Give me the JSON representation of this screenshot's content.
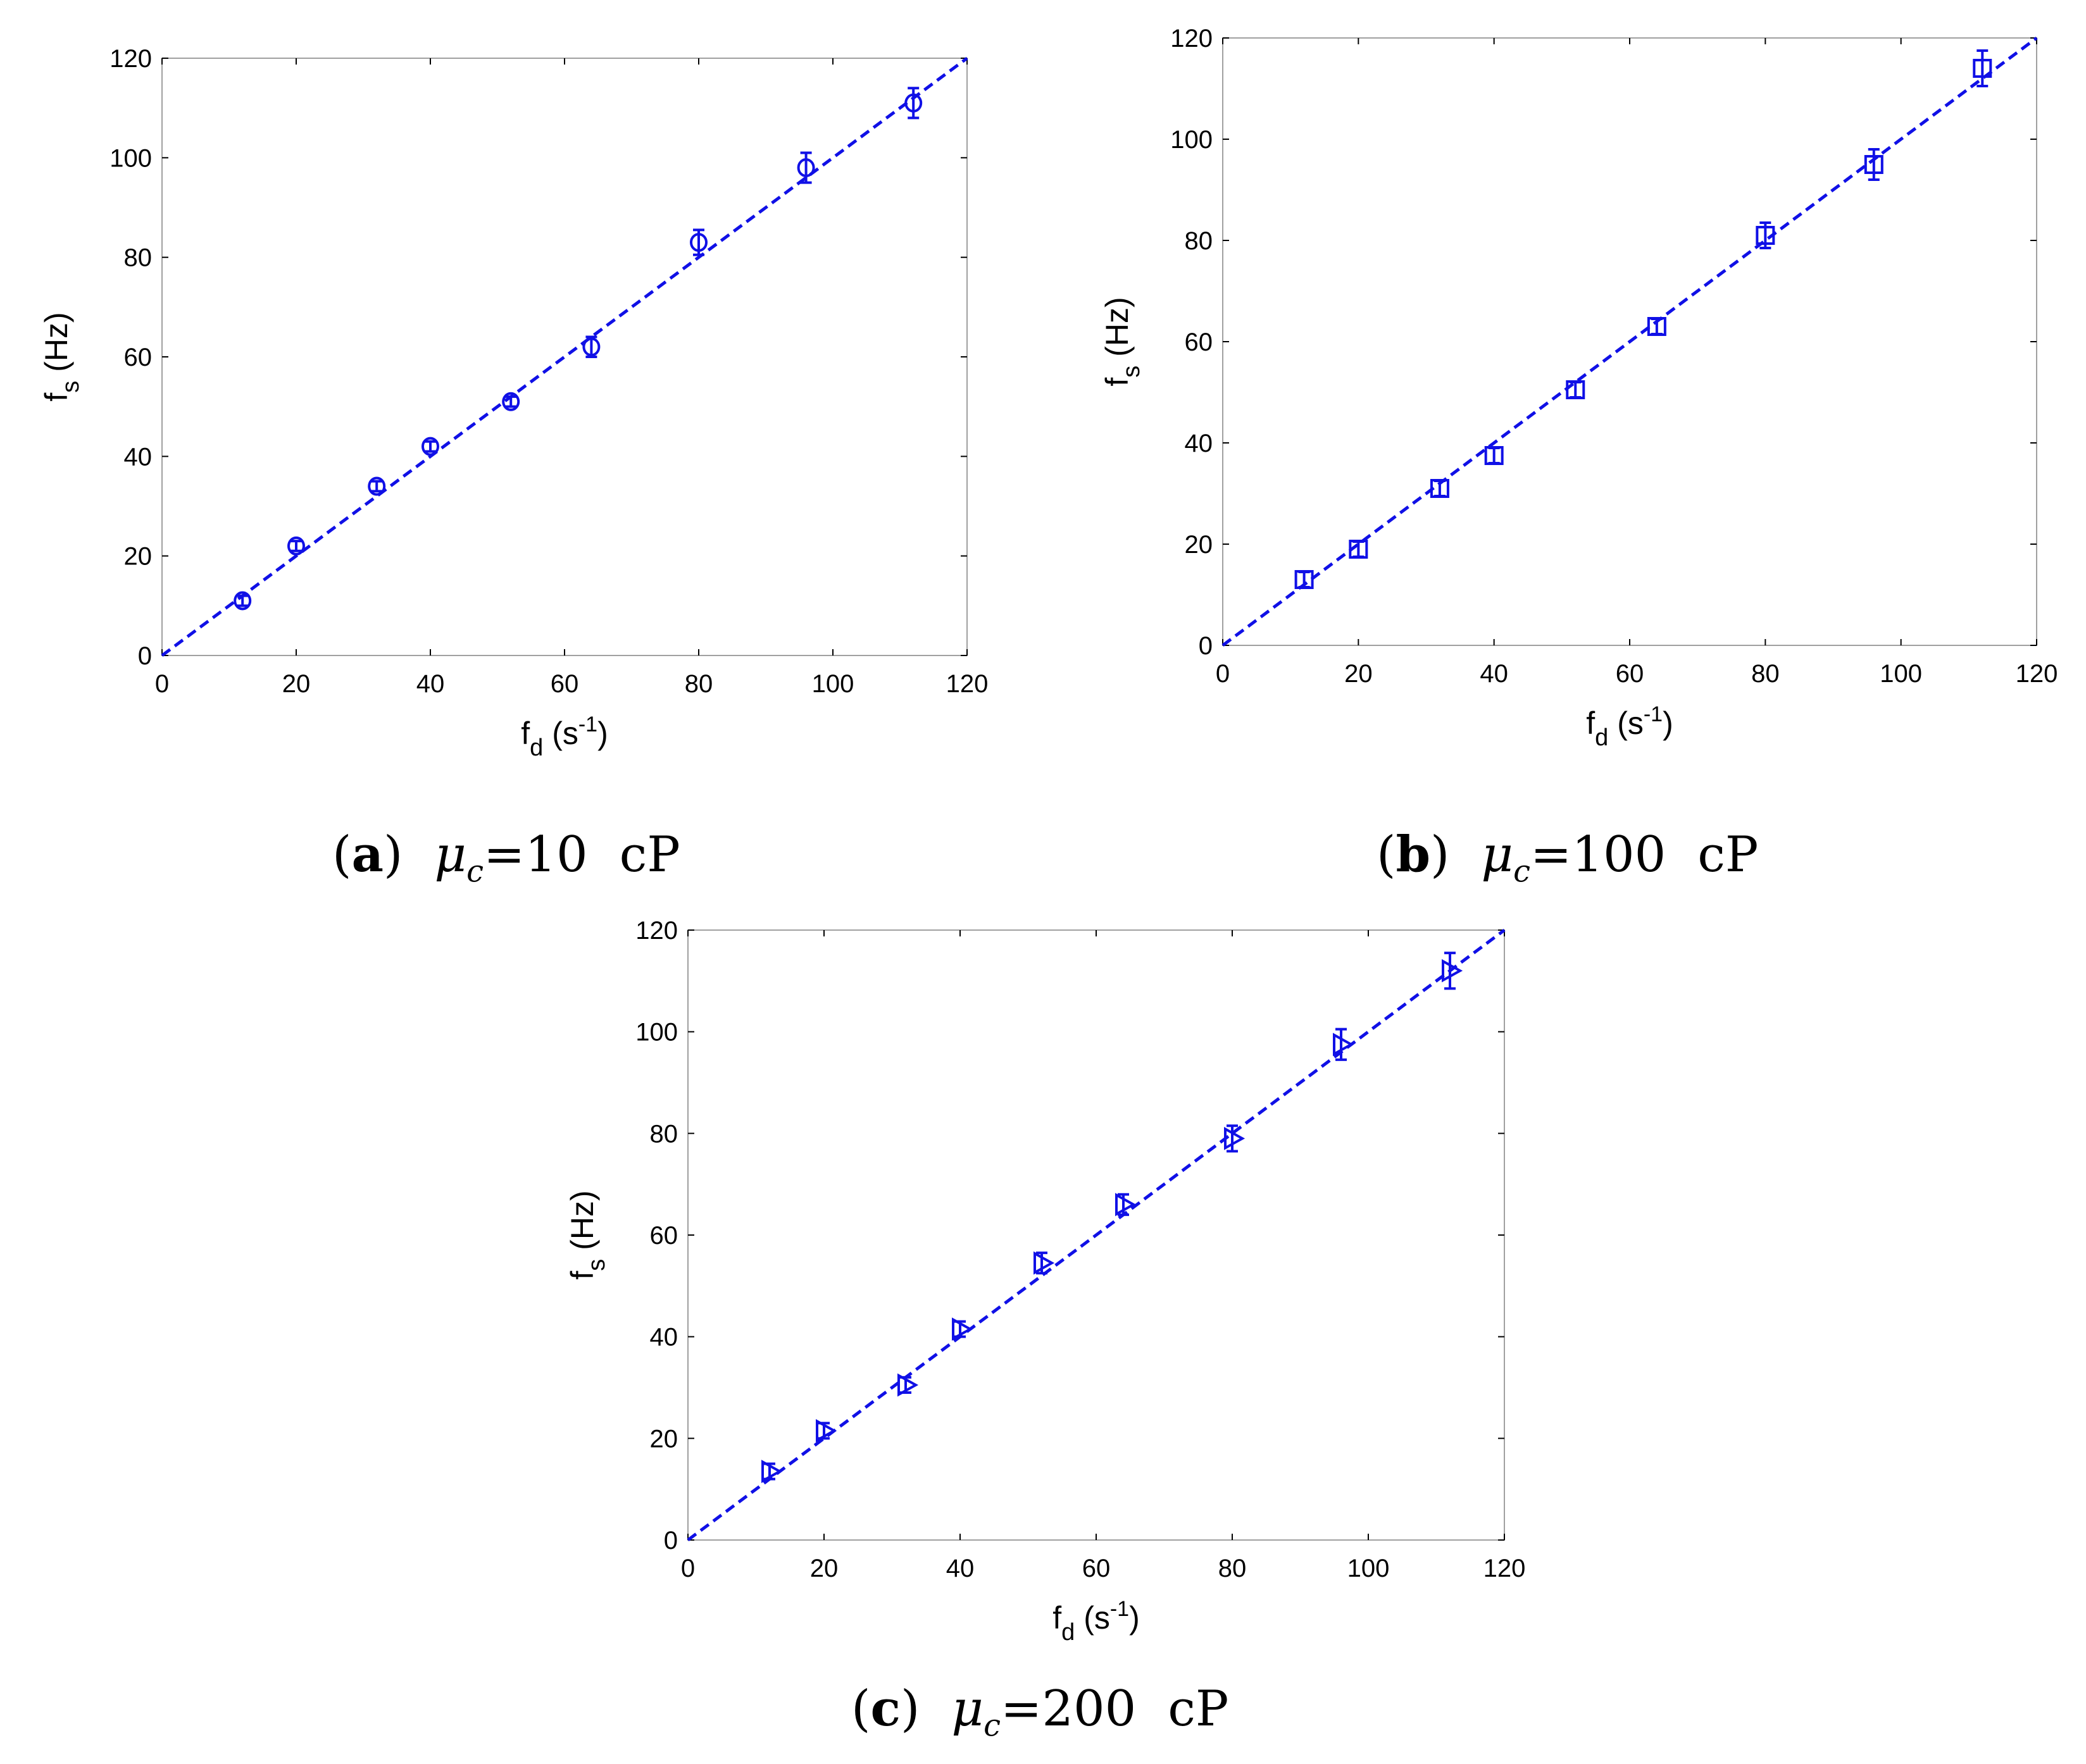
{
  "style": {
    "series_color": "#1010e6",
    "frame_color": "#a0a0a0"
  },
  "chart_data": [
    {
      "type": "scatter",
      "caption": {
        "tag": "a",
        "variable": "μ",
        "subscript": "c",
        "value": "=10",
        "unit": "cP"
      },
      "xlabel": {
        "base": "f",
        "sub": "d",
        "unit_prefix": " (s",
        "sup": "-1",
        "unit_suffix": ")"
      },
      "ylabel": {
        "base": "f",
        "sub": "s",
        "unit": " (Hz)"
      },
      "xlim": [
        0,
        120
      ],
      "ylim": [
        0,
        120
      ],
      "xticks": [
        "0",
        "20",
        "40",
        "60",
        "80",
        "100",
        "120"
      ],
      "yticks": [
        "0",
        "20",
        "40",
        "60",
        "80",
        "100",
        "120"
      ],
      "marker": "circle",
      "fit_line": {
        "style": "dashed",
        "x": [
          0,
          120
        ],
        "y": [
          0,
          120
        ]
      },
      "points": [
        {
          "x": 12,
          "y": 11,
          "err": 1
        },
        {
          "x": 20,
          "y": 22,
          "err": 1
        },
        {
          "x": 32,
          "y": 34,
          "err": 1
        },
        {
          "x": 40,
          "y": 42,
          "err": 1
        },
        {
          "x": 52,
          "y": 51,
          "err": 1
        },
        {
          "x": 64,
          "y": 62,
          "err": 2
        },
        {
          "x": 80,
          "y": 83,
          "err": 2.5
        },
        {
          "x": 96,
          "y": 98,
          "err": 3
        },
        {
          "x": 112,
          "y": 111,
          "err": 3
        }
      ]
    },
    {
      "type": "scatter",
      "caption": {
        "tag": "b",
        "variable": "μ",
        "subscript": "c",
        "value": "=100",
        "unit": "cP"
      },
      "xlabel": {
        "base": "f",
        "sub": "d",
        "unit_prefix": " (s",
        "sup": "-1",
        "unit_suffix": ")"
      },
      "ylabel": {
        "base": "f",
        "sub": "s",
        "unit": " (Hz)"
      },
      "xlim": [
        0,
        120
      ],
      "ylim": [
        0,
        120
      ],
      "xticks": [
        "0",
        "20",
        "40",
        "60",
        "80",
        "100",
        "120"
      ],
      "yticks": [
        "0",
        "20",
        "40",
        "60",
        "80",
        "100",
        "120"
      ],
      "marker": "square",
      "fit_line": {
        "style": "dashed",
        "x": [
          0,
          120
        ],
        "y": [
          0,
          120
        ]
      },
      "points": [
        {
          "x": 12,
          "y": 13,
          "err": 1.5
        },
        {
          "x": 20,
          "y": 19,
          "err": 1.5
        },
        {
          "x": 32,
          "y": 31,
          "err": 1.5
        },
        {
          "x": 40,
          "y": 37.5,
          "err": 1.5
        },
        {
          "x": 52,
          "y": 50.5,
          "err": 1.5
        },
        {
          "x": 64,
          "y": 63,
          "err": 1.5
        },
        {
          "x": 80,
          "y": 81,
          "err": 2.5
        },
        {
          "x": 96,
          "y": 95,
          "err": 3
        },
        {
          "x": 112,
          "y": 114,
          "err": 3.5
        }
      ]
    },
    {
      "type": "scatter",
      "caption": {
        "tag": "c",
        "variable": "μ",
        "subscript": "c",
        "value": "=200",
        "unit": "cP"
      },
      "xlabel": {
        "base": "f",
        "sub": "d",
        "unit_prefix": " (s",
        "sup": "-1",
        "unit_suffix": ")"
      },
      "ylabel": {
        "base": "f",
        "sub": "s",
        "unit": " (Hz)"
      },
      "xlim": [
        0,
        120
      ],
      "ylim": [
        0,
        120
      ],
      "xticks": [
        "0",
        "20",
        "40",
        "60",
        "80",
        "100",
        "120"
      ],
      "yticks": [
        "0",
        "20",
        "40",
        "60",
        "80",
        "100",
        "120"
      ],
      "marker": "triangle-right",
      "fit_line": {
        "style": "dashed",
        "x": [
          0,
          120
        ],
        "y": [
          0,
          120
        ]
      },
      "points": [
        {
          "x": 12,
          "y": 13.5,
          "err": 1.5
        },
        {
          "x": 20,
          "y": 21.5,
          "err": 1.5
        },
        {
          "x": 32,
          "y": 30.5,
          "err": 1.5
        },
        {
          "x": 40,
          "y": 41.5,
          "err": 1.5
        },
        {
          "x": 52,
          "y": 54.5,
          "err": 2
        },
        {
          "x": 64,
          "y": 66,
          "err": 2
        },
        {
          "x": 80,
          "y": 79,
          "err": 2.5
        },
        {
          "x": 96,
          "y": 97.5,
          "err": 3
        },
        {
          "x": 112,
          "y": 112,
          "err": 3.5
        }
      ]
    }
  ]
}
